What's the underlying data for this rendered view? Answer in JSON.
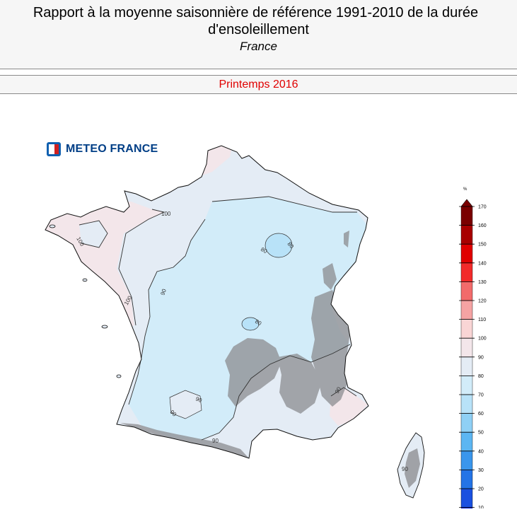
{
  "header": {
    "title_line1": "Rapport à la moyenne saisonnière de référence 1991-2010 de la durée",
    "title_line2": "d'ensoleillement",
    "subtitle": "France"
  },
  "period": "Printemps 2016",
  "logo": {
    "text": "METEO FRANCE",
    "icon": "meteo-france-logo-icon"
  },
  "legend": {
    "unit": "%",
    "ticks": [
      "170",
      "160",
      "150",
      "140",
      "130",
      "120",
      "110",
      "100",
      "90",
      "80",
      "70",
      "60",
      "50",
      "40",
      "30",
      "20",
      "10"
    ],
    "colors": [
      "#7a0000",
      "#a80000",
      "#e00000",
      "#f22a2a",
      "#f26b6b",
      "#f5a3a3",
      "#f9d5d5",
      "#f3e6ea",
      "#e4ecf5",
      "#d2ecf9",
      "#b8e2f8",
      "#8fd0f5",
      "#5cb6f2",
      "#3a96ec",
      "#2474e6",
      "#1a50e0",
      "#0c24d6"
    ]
  },
  "map": {
    "region": "France",
    "contour_labels": [
      "100",
      "100",
      "100",
      "90",
      "90",
      "80",
      "80",
      "80",
      "90",
      "90",
      "90",
      "90"
    ],
    "colors": {
      "class_80_90": "#d2ecf9",
      "class_90_100": "#e4ecf5",
      "class_100_110": "#f3e6ea",
      "class_below_80": "#b8e2f8",
      "relief": "#8f9094",
      "coast": "#000000",
      "contour": "#333333"
    }
  }
}
